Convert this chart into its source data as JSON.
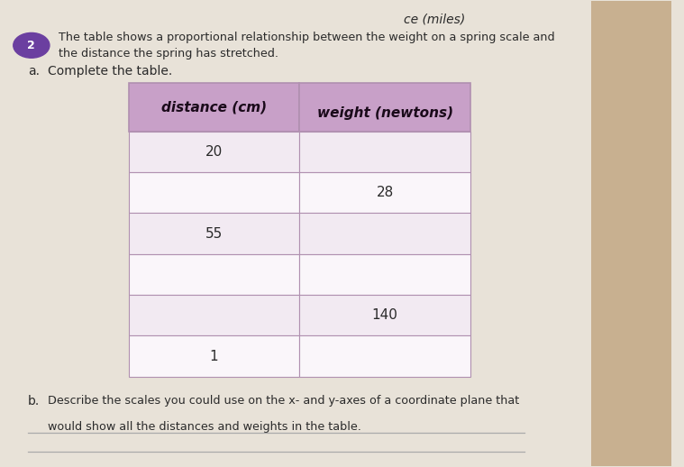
{
  "title_number": "2",
  "title_number_color": "#6b3fa0",
  "title_text1": "The table shows a proportional relationship between the weight on a spring scale and",
  "title_text2": "the distance the spring has stretched.",
  "part_a_label": "a.",
  "part_a_text": "Complete the table.",
  "part_b_label": "b.",
  "part_b_text1": "Describe the scales you could use on the x- and y-axes of a coordinate plane that",
  "part_b_text2": "would show all the distances and weights in the table.",
  "header_col1": "distance (cm)",
  "header_col2": "weight (newtons)",
  "header_bg_color": "#c8a0c8",
  "row_bg_even": "#f2eaf2",
  "row_bg_odd": "#faf6fa",
  "table_border_color": "#b090b0",
  "rows": [
    {
      "col1": "20",
      "col2": ""
    },
    {
      "col1": "",
      "col2": "28"
    },
    {
      "col1": "55",
      "col2": ""
    },
    {
      "col1": "",
      "col2": ""
    },
    {
      "col1": "",
      "col2": "140"
    },
    {
      "col1": "1",
      "col2": ""
    }
  ],
  "text_color": "#2a2a2a",
  "page_bg": "#e8e2d8",
  "top_text_partial": "ce (miles)",
  "right_strip_color": "#c8b090",
  "line_color": "#aaaaaa"
}
